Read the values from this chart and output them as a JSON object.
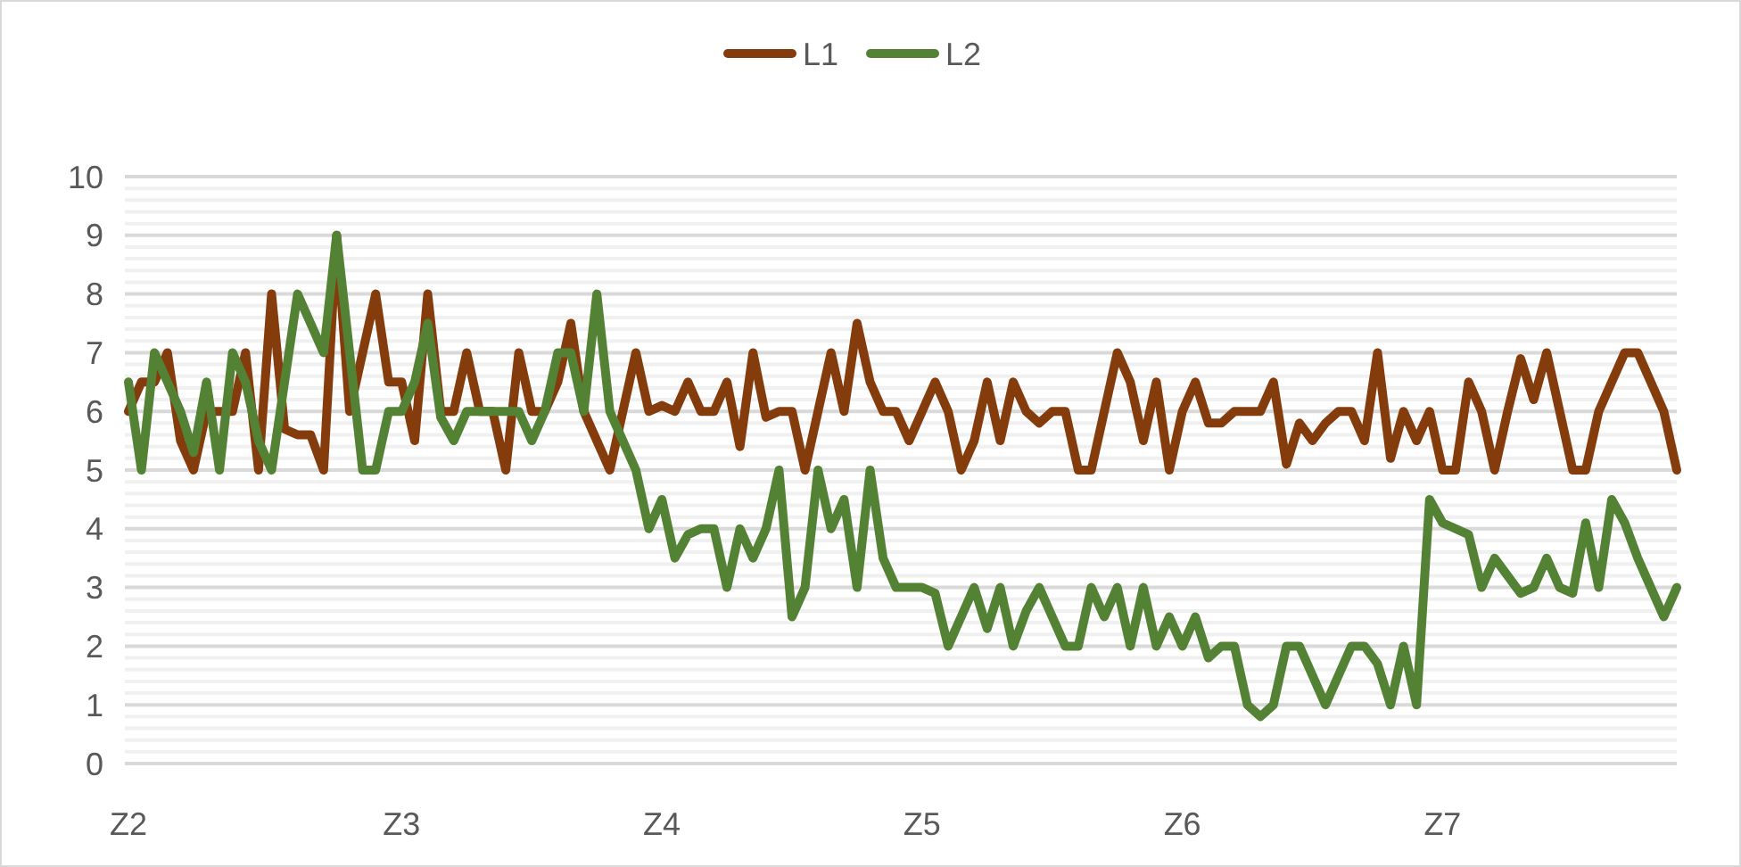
{
  "chart_data": {
    "type": "line",
    "categories": [
      "Z2",
      null,
      null,
      null,
      null,
      null,
      null,
      null,
      null,
      null,
      null,
      null,
      null,
      null,
      null,
      null,
      null,
      null,
      null,
      null,
      null,
      "Z3",
      null,
      null,
      null,
      null,
      null,
      null,
      null,
      null,
      null,
      null,
      null,
      null,
      null,
      null,
      null,
      null,
      null,
      null,
      null,
      "Z4",
      null,
      null,
      null,
      null,
      null,
      null,
      null,
      null,
      null,
      null,
      null,
      null,
      null,
      null,
      null,
      null,
      null,
      null,
      null,
      "Z5",
      null,
      null,
      null,
      null,
      null,
      null,
      null,
      null,
      null,
      null,
      null,
      null,
      null,
      null,
      null,
      null,
      null,
      null,
      null,
      "Z6",
      null,
      null,
      null,
      null,
      null,
      null,
      null,
      null,
      null,
      null,
      null,
      null,
      null,
      null,
      null,
      null,
      null,
      null,
      null,
      "Z7",
      null,
      null,
      null,
      null,
      null,
      null,
      null,
      null,
      null,
      null,
      null,
      null,
      null,
      null,
      null,
      null,
      null,
      null
    ],
    "series": [
      {
        "name": "L1",
        "color": "#843c0c",
        "values": [
          6,
          6.5,
          6.5,
          7,
          5.5,
          5,
          6,
          6,
          6,
          7,
          5,
          8,
          5.7,
          5.6,
          5.6,
          5,
          9,
          6,
          7,
          8,
          6.5,
          6.5,
          5.5,
          8,
          6,
          6,
          7,
          6,
          6,
          5,
          7,
          6,
          6,
          6.5,
          7.5,
          6,
          5.5,
          5,
          6,
          7,
          6,
          6.1,
          6,
          6.5,
          6,
          6,
          6.5,
          5.4,
          7,
          5.9,
          6,
          6,
          5,
          6,
          7,
          6,
          7.5,
          6.5,
          6,
          6,
          5.5,
          6,
          6.5,
          6,
          5,
          5.5,
          6.5,
          5.5,
          6.5,
          6,
          5.8,
          6,
          6,
          5,
          5,
          6,
          7,
          6.5,
          5.5,
          6.5,
          5,
          6,
          6.5,
          5.8,
          5.8,
          6,
          6,
          6,
          6.5,
          5.1,
          5.8,
          5.5,
          5.8,
          6,
          6,
          5.5,
          7,
          5.2,
          6,
          5.5,
          6,
          5,
          5,
          6.5,
          6,
          5,
          6,
          6.9,
          6.2,
          7,
          6,
          5,
          5,
          6,
          6.5,
          7,
          7,
          6.5,
          6,
          5
        ]
      },
      {
        "name": "L2",
        "color": "#548235",
        "values": [
          6.5,
          5,
          7,
          6.5,
          6,
          5.3,
          6.5,
          5,
          7,
          6.5,
          5.5,
          5,
          6.5,
          8,
          7.5,
          7,
          9,
          7,
          5,
          5,
          6,
          6,
          6.5,
          7.5,
          5.9,
          5.5,
          6,
          6,
          6,
          6,
          6,
          5.5,
          6,
          7,
          7,
          6,
          8,
          6,
          5.5,
          5,
          4,
          4.5,
          3.5,
          3.9,
          4,
          4,
          3,
          4,
          3.5,
          4,
          5,
          2.5,
          3,
          5,
          4,
          4.5,
          3,
          5,
          3.5,
          3,
          3,
          3,
          2.9,
          2,
          2.5,
          3,
          2.3,
          3,
          2,
          2.6,
          3,
          2.5,
          2,
          2,
          3,
          2.5,
          3,
          2,
          3,
          2,
          2.5,
          2,
          2.5,
          1.8,
          2,
          2,
          1,
          0.8,
          1,
          2,
          2,
          1.5,
          1,
          1.5,
          2,
          2,
          1.7,
          1,
          2,
          1,
          4.5,
          4.1,
          4,
          3.9,
          3,
          3.5,
          3.2,
          2.9,
          3,
          3.5,
          3,
          2.9,
          4.1,
          3,
          4.5,
          4.1,
          3.5,
          3,
          2.5,
          3
        ]
      }
    ],
    "ylim": [
      0,
      10
    ],
    "yticks": [
      0,
      1,
      2,
      3,
      4,
      5,
      6,
      7,
      8,
      9,
      10
    ],
    "grid": "y",
    "legend": "top",
    "marker": "none",
    "line_style": "solid"
  }
}
